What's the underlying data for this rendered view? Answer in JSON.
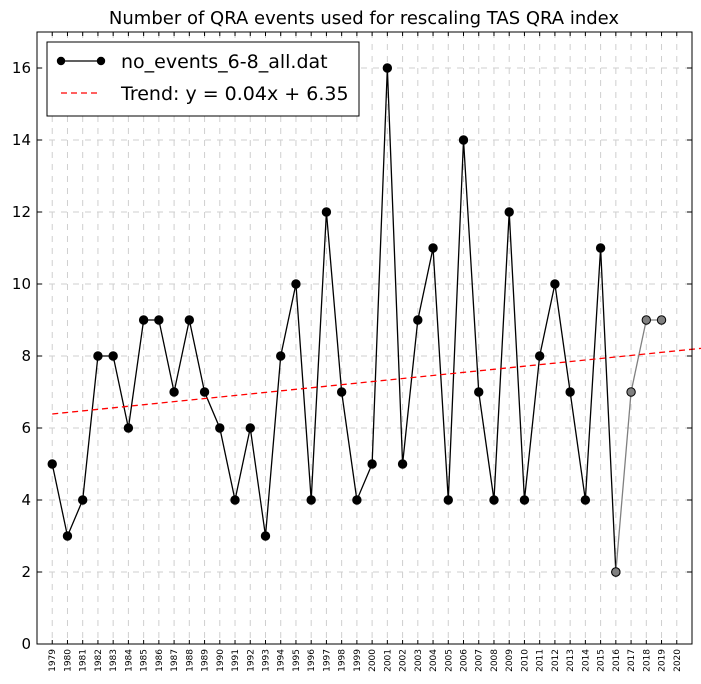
{
  "chart_data": {
    "type": "line",
    "title": "Number of QRA events used for rescaling TAS QRA index",
    "xlabel": "",
    "ylabel": "",
    "xlim": [
      1978,
      2021
    ],
    "ylim": [
      0,
      17
    ],
    "yticks": [
      0,
      2,
      4,
      6,
      8,
      10,
      12,
      14,
      16
    ],
    "categories": [
      "1979",
      "1980",
      "1981",
      "1982",
      "1983",
      "1984",
      "1985",
      "1986",
      "1987",
      "1988",
      "1989",
      "1990",
      "1991",
      "1992",
      "1993",
      "1994",
      "1995",
      "1996",
      "1997",
      "1998",
      "1999",
      "2000",
      "2001",
      "2002",
      "2003",
      "2004",
      "2005",
      "2006",
      "2007",
      "2008",
      "2009",
      "2010",
      "2011",
      "2012",
      "2013",
      "2014",
      "2015",
      "2016",
      "2017",
      "2018",
      "2019",
      "2020"
    ],
    "grid": true,
    "legend_position": "top-left",
    "series": [
      {
        "name": "no_events_6-8_all.dat",
        "style": "line-markers",
        "color": "#000000",
        "x": [
          1979,
          1980,
          1981,
          1982,
          1983,
          1984,
          1985,
          1986,
          1987,
          1988,
          1989,
          1990,
          1991,
          1992,
          1993,
          1994,
          1995,
          1996,
          1997,
          1998,
          1999,
          2000,
          2001,
          2002,
          2003,
          2004,
          2005,
          2006,
          2007,
          2008,
          2009,
          2010,
          2011,
          2012,
          2013,
          2014,
          2015,
          2016
        ],
        "values": [
          5,
          3,
          4,
          8,
          8,
          6,
          9,
          9,
          7,
          9,
          7,
          6,
          4,
          6,
          3,
          8,
          10,
          4,
          12,
          7,
          4,
          5,
          16,
          5,
          9,
          11,
          4,
          14,
          7,
          4,
          12,
          4,
          8,
          10,
          7,
          4,
          11,
          2
        ]
      },
      {
        "name": "",
        "style": "line-markers",
        "color": "#808080",
        "x": [
          2016,
          2017,
          2018,
          2019
        ],
        "values": [
          2,
          7,
          9,
          9
        ]
      },
      {
        "name": "Trend: y = 0.04x + 6.35",
        "style": "dashed",
        "color": "#ff0000",
        "x": [
          1979,
          2022
        ],
        "values": [
          6.39,
          8.23
        ]
      }
    ]
  }
}
